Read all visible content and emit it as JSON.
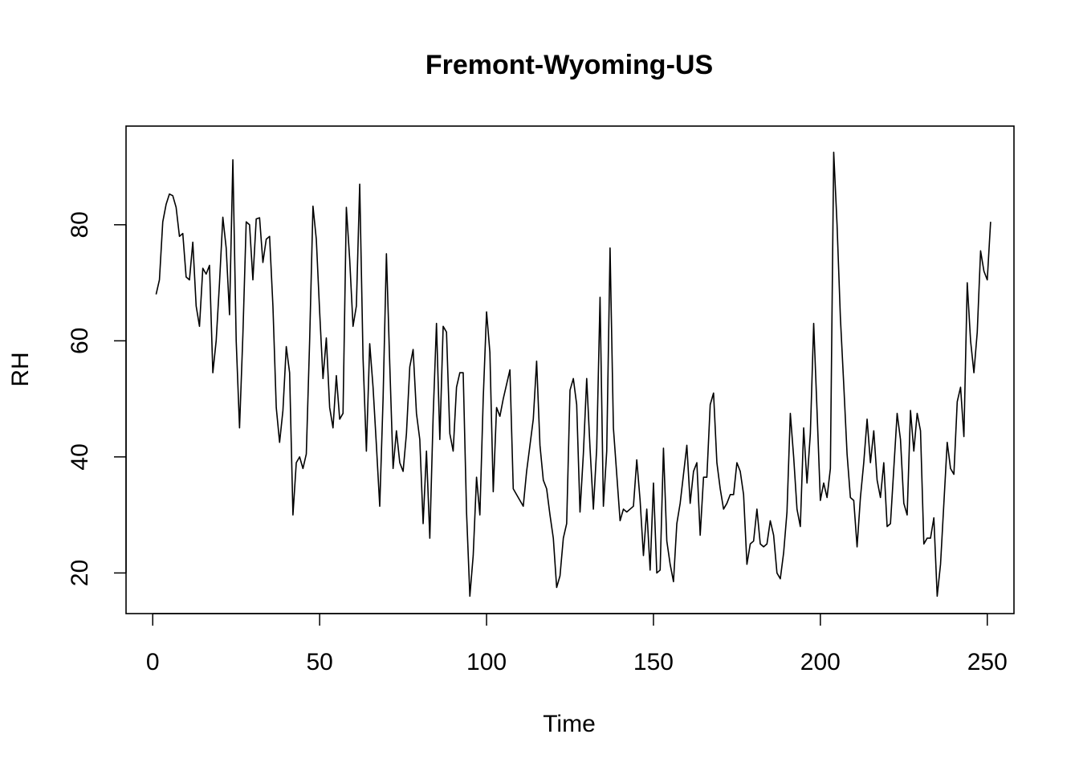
{
  "chart_data": {
    "type": "line",
    "title": "Fremont-Wyoming-US",
    "xlabel": "Time",
    "ylabel": "RH",
    "xlim": [
      -8,
      258
    ],
    "ylim": [
      13,
      97
    ],
    "x_ticks": [
      0,
      50,
      100,
      150,
      200,
      250
    ],
    "y_ticks": [
      20,
      40,
      60,
      80
    ],
    "grid": false,
    "legend": "none",
    "color": "#000000",
    "series": [
      {
        "x_start": 1,
        "values": [
          68,
          70.5,
          80.5,
          83.5,
          85.3,
          85,
          83,
          78,
          78.5,
          71,
          70.5,
          77,
          66,
          62.5,
          72.5,
          71.5,
          73,
          54.5,
          60,
          70,
          81.3,
          76,
          64.5,
          91.2,
          60,
          45,
          61,
          80.5,
          80,
          70.5,
          81,
          81.2,
          73.5,
          77.5,
          78,
          66,
          48.5,
          42.5,
          48,
          59,
          54.5,
          30,
          39,
          40,
          38,
          40.5,
          60,
          83.2,
          77.5,
          65,
          53.5,
          60.5,
          48.5,
          45,
          54,
          46.5,
          47.5,
          83,
          74,
          62.5,
          66,
          87,
          57,
          41,
          59.5,
          52,
          42,
          31.5,
          50,
          75,
          56,
          38,
          44.5,
          39,
          37.5,
          44,
          55.5,
          58.5,
          47.5,
          43,
          28.5,
          41,
          26,
          47,
          63,
          43,
          62.5,
          61.5,
          44,
          41,
          52,
          54.5,
          54.5,
          30.5,
          16,
          23,
          36.5,
          30,
          50,
          65,
          58,
          34,
          48.5,
          47,
          50,
          52.5,
          55,
          34.5,
          33.5,
          32.5,
          31.5,
          37.5,
          42,
          46.5,
          56.5,
          42,
          36,
          34.5,
          30,
          26,
          17.5,
          19.5,
          26,
          28.5,
          51.5,
          53.5,
          49,
          30.5,
          40.5,
          53.5,
          41.5,
          31,
          41.5,
          67.5,
          31.5,
          41,
          76,
          45,
          37,
          29,
          31,
          30.5,
          31,
          31.5,
          39.5,
          32.5,
          23,
          31,
          20.5,
          35.5,
          20,
          20.5,
          41.5,
          25.5,
          21.5,
          18.5,
          28.5,
          32,
          37,
          42,
          32,
          37.5,
          39,
          26.5,
          36.5,
          36.5,
          49,
          51,
          39,
          34.5,
          31,
          32,
          33.5,
          33.5,
          39,
          37.5,
          33.5,
          21.5,
          25,
          25.5,
          31,
          25,
          24.5,
          25,
          29,
          26.5,
          20,
          19,
          23.5,
          30.5,
          47.5,
          40,
          31,
          28,
          45,
          35.5,
          44,
          63,
          48,
          32.5,
          35.5,
          33,
          38,
          92.5,
          80,
          64,
          52.5,
          40.5,
          33,
          32.5,
          24.5,
          33,
          39,
          46.5,
          39,
          44.5,
          36,
          33,
          39,
          28,
          28.5,
          38,
          47.5,
          43,
          32,
          30,
          48,
          41,
          47.5,
          44.5,
          25,
          26,
          26,
          29.5,
          16,
          21.5,
          32,
          42.5,
          38,
          37,
          49.5,
          52,
          43.5,
          70,
          60,
          54.5,
          61.5,
          75.5,
          72,
          70.5,
          80.5
        ]
      }
    ]
  }
}
